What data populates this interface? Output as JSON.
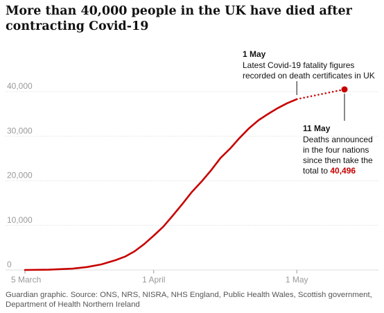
{
  "title": "More than 40,000 people in the UK have died after contracting Covid-19",
  "footer": "Guardian graphic. Source: ONS, NRS, NISRA, NHS England, Public Health Wales, Scottish government, Department of Health Northern Ireland",
  "colors": {
    "line": "#c70000",
    "grid": "#dcdcdc",
    "axis_text": "#999999",
    "text": "#121212"
  },
  "chart_data": {
    "type": "line",
    "title": "More than 40,000 people in the UK have died after contracting Covid-19",
    "xlabel": "",
    "ylabel": "",
    "x_ticks": [
      "5 March",
      "1 April",
      "1 May"
    ],
    "x_tick_days": [
      0,
      27,
      57
    ],
    "ylim": [
      0,
      40000
    ],
    "y_ticks": [
      "0",
      "10,000",
      "20,000",
      "30,000",
      "40,000"
    ],
    "y_tick_values": [
      0,
      10000,
      20000,
      30000,
      40000
    ],
    "grid": "horizontal",
    "series": [
      {
        "style": "solid",
        "x": [
          "5 March",
          "10 March",
          "15 March",
          "18 March",
          "21 March",
          "24 March",
          "26 March",
          "28 March",
          "30 March",
          "1 April",
          "3 April",
          "5 April",
          "7 April",
          "9 April",
          "11 April",
          "13 April",
          "15 April",
          "17 April",
          "19 April",
          "21 April",
          "23 April",
          "25 April",
          "27 April",
          "29 April",
          "1 May"
        ],
        "values": [
          0,
          70,
          300,
          650,
          1250,
          2200,
          3000,
          4200,
          5800,
          7700,
          9700,
          12200,
          14800,
          17500,
          19800,
          22300,
          25100,
          27200,
          29600,
          31800,
          33600,
          35000,
          36300,
          37400,
          38300
        ]
      },
      {
        "style": "dotted",
        "x": [
          "1 May",
          "11 May"
        ],
        "values": [
          38300,
          40496
        ]
      }
    ],
    "annotations": [
      {
        "date": "1 May",
        "heading": "1 May",
        "text": "Latest Covid-19 fatality figures recorded on death certificates in UK"
      },
      {
        "date": "11 May",
        "heading": "11 May",
        "text": "Deaths announced in the four nations since then take the total to",
        "value": "40,496"
      }
    ]
  }
}
